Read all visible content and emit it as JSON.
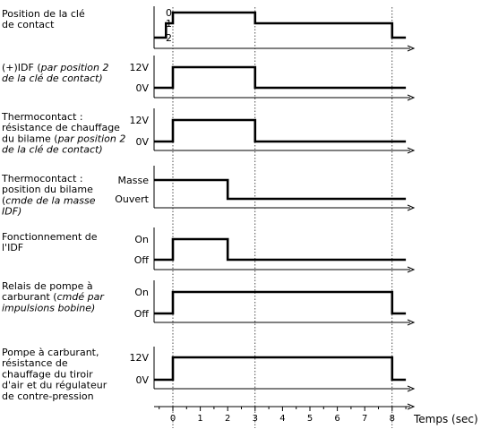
{
  "chart_data": {
    "type": "line",
    "x_label": "Temps (sec)",
    "x_ticks": [
      0,
      1,
      2,
      3,
      4,
      5,
      6,
      7,
      8
    ],
    "guide_lines_at": [
      0,
      3,
      8
    ],
    "panels": [
      {
        "label": [
          [
            {
              "t": "Position de la clé",
              "i": false
            }
          ],
          [
            {
              "t": "de contact",
              "i": false
            }
          ]
        ],
        "levels": [
          "0",
          "1",
          "2"
        ],
        "points": [
          [
            -0.7,
            "2"
          ],
          [
            -0.25,
            "2"
          ],
          [
            -0.25,
            "1"
          ],
          [
            0,
            "1"
          ],
          [
            0,
            "0"
          ],
          [
            3,
            "0"
          ],
          [
            3,
            "1"
          ],
          [
            8,
            "1"
          ],
          [
            8,
            "2"
          ],
          [
            8.5,
            "2"
          ]
        ]
      },
      {
        "label": [
          [
            {
              "t": "(+)IDF (",
              "i": false
            },
            {
              "t": "par position 2",
              "i": true
            }
          ],
          [
            {
              "t": "de la clé de contact)",
              "i": true
            }
          ]
        ],
        "levels": [
          "12V",
          "0V"
        ],
        "points": [
          [
            -0.7,
            "0V"
          ],
          [
            0,
            "0V"
          ],
          [
            0,
            "12V"
          ],
          [
            3,
            "12V"
          ],
          [
            3,
            "0V"
          ],
          [
            8.5,
            "0V"
          ]
        ]
      },
      {
        "label": [
          [
            {
              "t": "Thermocontact :",
              "i": false
            }
          ],
          [
            {
              "t": "résistance de chauffage",
              "i": false
            }
          ],
          [
            {
              "t": "du bilame (",
              "i": false
            },
            {
              "t": "par position 2",
              "i": true
            }
          ],
          [
            {
              "t": "de la clé de contact)",
              "i": true
            }
          ]
        ],
        "levels": [
          "12V",
          "0V"
        ],
        "points": [
          [
            -0.7,
            "0V"
          ],
          [
            0,
            "0V"
          ],
          [
            0,
            "12V"
          ],
          [
            3,
            "12V"
          ],
          [
            3,
            "0V"
          ],
          [
            8.5,
            "0V"
          ]
        ]
      },
      {
        "label": [
          [
            {
              "t": "Thermocontact :",
              "i": false
            }
          ],
          [
            {
              "t": "position du bilame",
              "i": false
            }
          ],
          [
            {
              "t": "(",
              "i": false
            },
            {
              "t": "cmde de la masse",
              "i": true
            }
          ],
          [
            {
              "t": "IDF)",
              "i": true
            }
          ]
        ],
        "levels": [
          "Masse",
          "Ouvert"
        ],
        "points": [
          [
            -0.7,
            "Masse"
          ],
          [
            2,
            "Masse"
          ],
          [
            2,
            "Ouvert"
          ],
          [
            8.5,
            "Ouvert"
          ]
        ]
      },
      {
        "label": [
          [
            {
              "t": "Fonctionnement de",
              "i": false
            }
          ],
          [
            {
              "t": "l'IDF",
              "i": false
            }
          ]
        ],
        "levels": [
          "On",
          "Off"
        ],
        "points": [
          [
            -0.7,
            "Off"
          ],
          [
            0,
            "Off"
          ],
          [
            0,
            "On"
          ],
          [
            2,
            "On"
          ],
          [
            2,
            "Off"
          ],
          [
            8.5,
            "Off"
          ]
        ]
      },
      {
        "label": [
          [
            {
              "t": "Relais de pompe à",
              "i": false
            }
          ],
          [
            {
              "t": "carburant (",
              "i": false
            },
            {
              "t": "cmdé par",
              "i": true
            }
          ],
          [
            {
              "t": "impulsions bobine)",
              "i": true
            }
          ]
        ],
        "levels": [
          "On",
          "Off"
        ],
        "points": [
          [
            -0.7,
            "Off"
          ],
          [
            0,
            "Off"
          ],
          [
            0,
            "On"
          ],
          [
            8,
            "On"
          ],
          [
            8,
            "Off"
          ],
          [
            8.5,
            "Off"
          ]
        ]
      },
      {
        "label": [
          [
            {
              "t": "Pompe à carburant,",
              "i": false
            }
          ],
          [
            {
              "t": "résistance de",
              "i": false
            }
          ],
          [
            {
              "t": "chauffage du tiroir",
              "i": false
            }
          ],
          [
            {
              "t": "d'air et du régulateur",
              "i": false
            }
          ],
          [
            {
              "t": "de contre-pression",
              "i": false
            }
          ]
        ],
        "levels": [
          "12V",
          "0V"
        ],
        "points": [
          [
            -0.7,
            "0V"
          ],
          [
            0,
            "0V"
          ],
          [
            0,
            "12V"
          ],
          [
            8,
            "12V"
          ],
          [
            8,
            "0V"
          ],
          [
            8.5,
            "0V"
          ]
        ]
      }
    ]
  }
}
